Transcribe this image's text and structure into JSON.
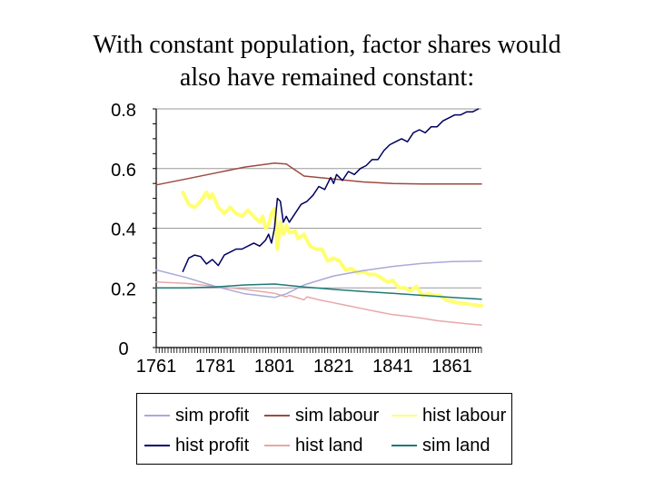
{
  "title": {
    "line1": "With constant population, factor shares would",
    "line2": "also have remained constant:"
  },
  "chart_data": {
    "type": "line",
    "title": "With constant population, factor shares would also have remained constant:",
    "xlabel": "",
    "ylabel": "",
    "xlim": [
      1761,
      1871
    ],
    "ylim": [
      0,
      0.8
    ],
    "x_ticks": [
      "1761",
      "1781",
      "1801",
      "1821",
      "1841",
      "1861"
    ],
    "y_ticks": [
      "0",
      "0.2",
      "0.4",
      "0.6",
      "0.8"
    ],
    "grid": "horizontal",
    "legend_position": "bottom",
    "series": [
      {
        "name": "sim profit",
        "color": "#a9a9d8",
        "width": 1.5,
        "points": [
          [
            1761,
            0.26
          ],
          [
            1771,
            0.235
          ],
          [
            1781,
            0.205
          ],
          [
            1791,
            0.18
          ],
          [
            1801,
            0.168
          ],
          [
            1805,
            0.18
          ],
          [
            1811,
            0.21
          ],
          [
            1821,
            0.24
          ],
          [
            1831,
            0.258
          ],
          [
            1841,
            0.272
          ],
          [
            1851,
            0.282
          ],
          [
            1861,
            0.288
          ],
          [
            1871,
            0.29
          ]
        ]
      },
      {
        "name": "sim labour",
        "color": "#9b4b40",
        "width": 1.5,
        "points": [
          [
            1761,
            0.545
          ],
          [
            1771,
            0.565
          ],
          [
            1781,
            0.585
          ],
          [
            1791,
            0.605
          ],
          [
            1801,
            0.618
          ],
          [
            1805,
            0.615
          ],
          [
            1811,
            0.575
          ],
          [
            1821,
            0.565
          ],
          [
            1831,
            0.555
          ],
          [
            1841,
            0.55
          ],
          [
            1851,
            0.548
          ],
          [
            1861,
            0.548
          ],
          [
            1871,
            0.548
          ]
        ]
      },
      {
        "name": "hist labour",
        "color": "#ffff70",
        "width": 4,
        "points": [
          [
            1770,
            0.52
          ],
          [
            1772,
            0.48
          ],
          [
            1774,
            0.47
          ],
          [
            1776,
            0.49
          ],
          [
            1778,
            0.52
          ],
          [
            1779,
            0.5
          ],
          [
            1780,
            0.515
          ],
          [
            1782,
            0.47
          ],
          [
            1784,
            0.45
          ],
          [
            1786,
            0.47
          ],
          [
            1788,
            0.45
          ],
          [
            1790,
            0.44
          ],
          [
            1792,
            0.46
          ],
          [
            1794,
            0.44
          ],
          [
            1796,
            0.42
          ],
          [
            1797,
            0.44
          ],
          [
            1798,
            0.4
          ],
          [
            1799,
            0.41
          ],
          [
            1800,
            0.45
          ],
          [
            1801,
            0.465
          ],
          [
            1802,
            0.33
          ],
          [
            1803,
            0.42
          ],
          [
            1804,
            0.38
          ],
          [
            1805,
            0.41
          ],
          [
            1806,
            0.385
          ],
          [
            1808,
            0.39
          ],
          [
            1809,
            0.365
          ],
          [
            1811,
            0.38
          ],
          [
            1813,
            0.34
          ],
          [
            1815,
            0.33
          ],
          [
            1817,
            0.33
          ],
          [
            1819,
            0.29
          ],
          [
            1821,
            0.3
          ],
          [
            1823,
            0.29
          ],
          [
            1825,
            0.26
          ],
          [
            1827,
            0.265
          ],
          [
            1829,
            0.25
          ],
          [
            1831,
            0.255
          ],
          [
            1833,
            0.245
          ],
          [
            1835,
            0.245
          ],
          [
            1837,
            0.235
          ],
          [
            1839,
            0.22
          ],
          [
            1841,
            0.225
          ],
          [
            1843,
            0.2
          ],
          [
            1845,
            0.2
          ],
          [
            1847,
            0.19
          ],
          [
            1849,
            0.205
          ],
          [
            1851,
            0.175
          ],
          [
            1853,
            0.18
          ],
          [
            1855,
            0.175
          ],
          [
            1857,
            0.175
          ],
          [
            1859,
            0.16
          ],
          [
            1861,
            0.155
          ],
          [
            1863,
            0.15
          ],
          [
            1865,
            0.148
          ],
          [
            1867,
            0.145
          ],
          [
            1871,
            0.14
          ]
        ]
      },
      {
        "name": "hist profit",
        "color": "#000060",
        "width": 1.5,
        "points": [
          [
            1770,
            0.255
          ],
          [
            1772,
            0.3
          ],
          [
            1774,
            0.31
          ],
          [
            1776,
            0.305
          ],
          [
            1778,
            0.28
          ],
          [
            1780,
            0.295
          ],
          [
            1782,
            0.275
          ],
          [
            1784,
            0.31
          ],
          [
            1786,
            0.32
          ],
          [
            1788,
            0.33
          ],
          [
            1790,
            0.33
          ],
          [
            1792,
            0.34
          ],
          [
            1794,
            0.35
          ],
          [
            1796,
            0.34
          ],
          [
            1798,
            0.36
          ],
          [
            1799,
            0.38
          ],
          [
            1800,
            0.35
          ],
          [
            1801,
            0.4
          ],
          [
            1802,
            0.5
          ],
          [
            1803,
            0.49
          ],
          [
            1804,
            0.42
          ],
          [
            1805,
            0.44
          ],
          [
            1806,
            0.42
          ],
          [
            1808,
            0.45
          ],
          [
            1810,
            0.48
          ],
          [
            1812,
            0.49
          ],
          [
            1814,
            0.51
          ],
          [
            1816,
            0.54
          ],
          [
            1818,
            0.53
          ],
          [
            1820,
            0.57
          ],
          [
            1821,
            0.55
          ],
          [
            1822,
            0.58
          ],
          [
            1824,
            0.56
          ],
          [
            1826,
            0.59
          ],
          [
            1828,
            0.58
          ],
          [
            1830,
            0.6
          ],
          [
            1832,
            0.61
          ],
          [
            1834,
            0.63
          ],
          [
            1836,
            0.63
          ],
          [
            1838,
            0.66
          ],
          [
            1840,
            0.68
          ],
          [
            1842,
            0.69
          ],
          [
            1844,
            0.7
          ],
          [
            1846,
            0.69
          ],
          [
            1848,
            0.72
          ],
          [
            1850,
            0.73
          ],
          [
            1852,
            0.72
          ],
          [
            1854,
            0.74
          ],
          [
            1856,
            0.74
          ],
          [
            1858,
            0.76
          ],
          [
            1860,
            0.77
          ],
          [
            1862,
            0.78
          ],
          [
            1864,
            0.78
          ],
          [
            1866,
            0.79
          ],
          [
            1868,
            0.79
          ],
          [
            1870,
            0.8
          ]
        ]
      },
      {
        "name": "hist land",
        "color": "#e8a8a8",
        "width": 1.5,
        "points": [
          [
            1761,
            0.22
          ],
          [
            1771,
            0.215
          ],
          [
            1781,
            0.205
          ],
          [
            1791,
            0.195
          ],
          [
            1801,
            0.182
          ],
          [
            1805,
            0.17
          ],
          [
            1806,
            0.175
          ],
          [
            1811,
            0.16
          ],
          [
            1812,
            0.17
          ],
          [
            1816,
            0.16
          ],
          [
            1821,
            0.15
          ],
          [
            1826,
            0.14
          ],
          [
            1831,
            0.13
          ],
          [
            1836,
            0.12
          ],
          [
            1841,
            0.11
          ],
          [
            1846,
            0.105
          ],
          [
            1851,
            0.098
          ],
          [
            1856,
            0.09
          ],
          [
            1861,
            0.085
          ],
          [
            1866,
            0.08
          ],
          [
            1871,
            0.075
          ]
        ]
      },
      {
        "name": "sim land",
        "color": "#207878",
        "width": 1.5,
        "points": [
          [
            1761,
            0.2
          ],
          [
            1771,
            0.2
          ],
          [
            1781,
            0.203
          ],
          [
            1791,
            0.21
          ],
          [
            1801,
            0.213
          ],
          [
            1811,
            0.203
          ],
          [
            1821,
            0.195
          ],
          [
            1831,
            0.188
          ],
          [
            1841,
            0.182
          ],
          [
            1851,
            0.175
          ],
          [
            1861,
            0.168
          ],
          [
            1871,
            0.162
          ]
        ]
      }
    ]
  },
  "legend": {
    "items": [
      {
        "label": "sim profit",
        "color": "#a9a9d8"
      },
      {
        "label": "sim labour",
        "color": "#9b4b40"
      },
      {
        "label": "hist labour",
        "color": "#ffff70"
      },
      {
        "label": "hist profit",
        "color": "#000060"
      },
      {
        "label": "hist land",
        "color": "#e8a8a8"
      },
      {
        "label": "sim land",
        "color": "#207878"
      }
    ]
  }
}
